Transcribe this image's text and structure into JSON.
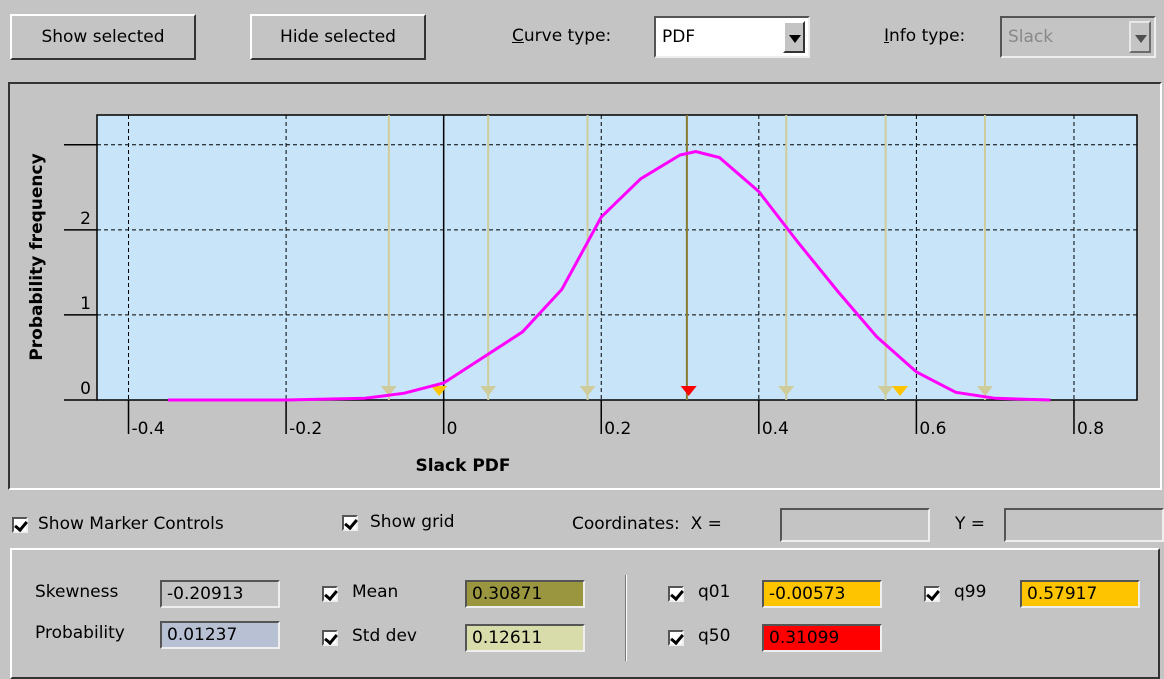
{
  "toolbar": {
    "show_selected": "Show selected",
    "hide_selected": "Hide selected",
    "curve_type_label": "Curve type:",
    "curve_type": "PDF",
    "info_type_label": "Info type:",
    "info_type": "Slack"
  },
  "chart_data": {
    "type": "line",
    "xlabel": "Slack PDF",
    "ylabel": "Probability frequency",
    "x": [
      -0.35,
      -0.2,
      -0.1,
      -0.05,
      0,
      0.05,
      0.1,
      0.15,
      0.2,
      0.25,
      0.3,
      0.32,
      0.35,
      0.4,
      0.45,
      0.5,
      0.55,
      0.6,
      0.65,
      0.7,
      0.77
    ],
    "series": [
      {
        "color": "#ff00ff",
        "values": [
          0,
          0,
          0.02,
          0.08,
          0.2,
          0.5,
          0.8,
          1.3,
          2.15,
          2.6,
          2.88,
          2.92,
          2.85,
          2.45,
          1.85,
          1.28,
          0.74,
          0.33,
          0.09,
          0.02,
          0
        ]
      }
    ],
    "xlim": [
      -0.44,
      0.88
    ],
    "ylim": [
      0,
      3.35
    ],
    "xticks": [
      -0.4,
      -0.2,
      0,
      0.2,
      0.4,
      0.6,
      0.8
    ],
    "yticks": [
      0,
      1,
      2
    ],
    "unlabeled_yticks": [
      3
    ],
    "grid": true,
    "background": "#c8e4f8"
  },
  "controls": {
    "show_marker_controls": "Show Marker Controls",
    "show_grid": "Show grid",
    "coordinates_x": "Coordinates:  X =",
    "coordinates_y": "Y ="
  },
  "stats": {
    "skewness": {
      "label": "Skewness",
      "value": -0.20913
    },
    "probability": {
      "label": "Probability",
      "value": 0.01237
    },
    "mean": {
      "label": "Mean",
      "value": 0.30871,
      "color": "#9a9640",
      "line_color": "#8a7a30"
    },
    "std_dev": {
      "label": "Std dev",
      "value": 0.12611,
      "color": "#d8dcaa",
      "line_color": "#cfcc9c"
    },
    "q01": {
      "label": "q01",
      "value": -0.00573,
      "color": "#ffc400"
    },
    "q50": {
      "label": "q50",
      "value": 0.31099,
      "color": "#ff0000"
    },
    "q99": {
      "label": "q99",
      "value": 0.57917,
      "color": "#ffc400"
    }
  }
}
